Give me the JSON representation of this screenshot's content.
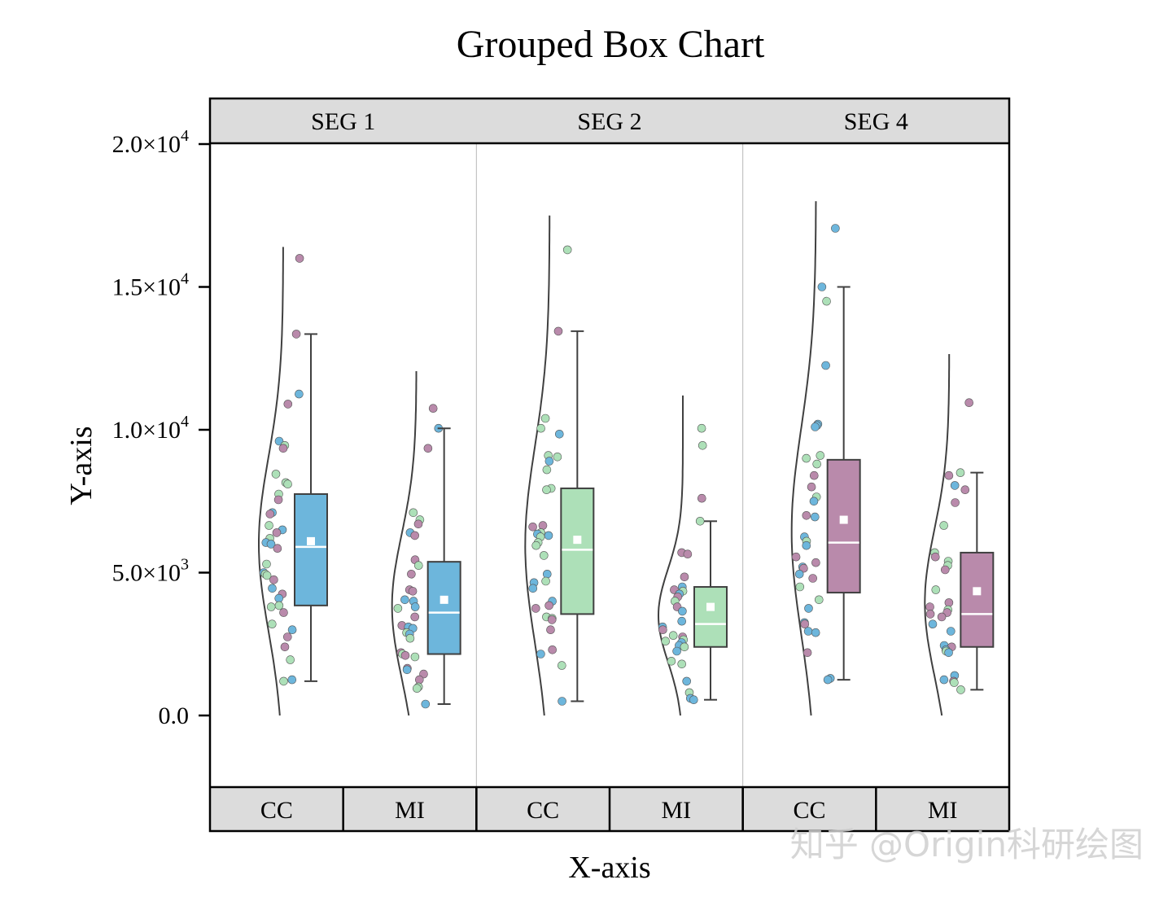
{
  "chart_data": {
    "type": "box",
    "title": "Grouped Box Chart",
    "xlabel": "X-axis",
    "ylabel": "Y-axis",
    "ylim": [
      -2500,
      21500
    ],
    "y_ticks": [
      0,
      5000,
      10000,
      15000,
      20000
    ],
    "y_tick_labels": [
      {
        "value": 0,
        "mantissa": "0.0",
        "exp": ""
      },
      {
        "value": 5000,
        "mantissa": "5.0×10",
        "exp": "3"
      },
      {
        "value": 10000,
        "mantissa": "1.0×10",
        "exp": "4"
      },
      {
        "value": 15000,
        "mantissa": "1.5×10",
        "exp": "4"
      },
      {
        "value": 20000,
        "mantissa": "2.0×10",
        "exp": "4"
      }
    ],
    "segments": [
      "SEG 1",
      "SEG 2",
      "SEG 4"
    ],
    "categories": [
      "CC",
      "MI"
    ],
    "colors": {
      "blue": "#6db6dc",
      "green": "#ade0b8",
      "purple": "#b98aab",
      "line": "#404040",
      "strip": "#dcdcdc"
    },
    "boxes": [
      {
        "segment": "SEG 1",
        "category": "CC",
        "color": "blue",
        "whisker_low": 1200,
        "q1": 3850,
        "median": 5900,
        "q3": 7750,
        "whisker_high": 13350,
        "mean": 6100
      },
      {
        "segment": "SEG 1",
        "category": "MI",
        "color": "blue",
        "whisker_low": 400,
        "q1": 2150,
        "median": 3600,
        "q3": 5380,
        "whisker_high": 10050,
        "mean": 4050
      },
      {
        "segment": "SEG 2",
        "category": "CC",
        "color": "green",
        "whisker_low": 500,
        "q1": 3550,
        "median": 5800,
        "q3": 7950,
        "whisker_high": 13450,
        "mean": 6150
      },
      {
        "segment": "SEG 2",
        "category": "MI",
        "color": "green",
        "whisker_low": 550,
        "q1": 2400,
        "median": 3200,
        "q3": 4500,
        "whisker_high": 6800,
        "mean": 3800
      },
      {
        "segment": "SEG 4",
        "category": "CC",
        "color": "purple",
        "whisker_low": 1250,
        "q1": 4300,
        "median": 6050,
        "q3": 8950,
        "whisker_high": 15000,
        "mean": 6850
      },
      {
        "segment": "SEG 4",
        "category": "MI",
        "color": "purple",
        "whisker_low": 900,
        "q1": 2400,
        "median": 3550,
        "q3": 5700,
        "whisker_high": 8500,
        "mean": 4350
      }
    ],
    "density_extent": [
      {
        "segment": "SEG 1",
        "category": "CC",
        "min": 0,
        "max": 16400
      },
      {
        "segment": "SEG 1",
        "category": "MI",
        "min": 0,
        "max": 12050
      },
      {
        "segment": "SEG 2",
        "category": "CC",
        "min": 0,
        "max": 17500
      },
      {
        "segment": "SEG 2",
        "category": "MI",
        "min": 0,
        "max": 11200
      },
      {
        "segment": "SEG 4",
        "category": "CC",
        "min": 0,
        "max": 18000
      },
      {
        "segment": "SEG 4",
        "category": "MI",
        "min": 0,
        "max": 12650
      }
    ],
    "points": [
      {
        "segment": "SEG 1",
        "category": "CC",
        "values": [
          16000,
          13350,
          11250,
          10900,
          9600,
          9450,
          9350,
          8450,
          8150,
          8100,
          7750,
          7550,
          7100,
          7050,
          6650,
          6500,
          6400,
          6200,
          6050,
          6000,
          5850,
          5300,
          5000,
          4950,
          4900,
          4750,
          4450,
          4250,
          4100,
          3850,
          3800,
          3600,
          3200,
          3000,
          2750,
          2400,
          1950,
          1250,
          1200
        ]
      },
      {
        "segment": "SEG 1",
        "category": "MI",
        "values": [
          10750,
          10050,
          9350,
          7100,
          6850,
          6700,
          6400,
          6300,
          5450,
          5250,
          4950,
          4400,
          4350,
          4050,
          4000,
          3800,
          3750,
          3450,
          3150,
          3100,
          3050,
          2900,
          2850,
          2700,
          2200,
          2150,
          2100,
          2050,
          1650,
          1600,
          1450,
          1250,
          1000,
          950,
          400
        ]
      },
      {
        "segment": "SEG 2",
        "category": "CC",
        "values": [
          16300,
          13450,
          10400,
          10050,
          9850,
          9100,
          9050,
          8900,
          8600,
          7950,
          7900,
          6650,
          6600,
          6400,
          6350,
          6300,
          6250,
          6050,
          5950,
          5600,
          4950,
          4700,
          4650,
          4450,
          4000,
          3850,
          3750,
          3450,
          3400,
          3350,
          3000,
          2300,
          2150,
          1750,
          500
        ]
      },
      {
        "segment": "SEG 2",
        "category": "MI",
        "values": [
          10050,
          9450,
          7600,
          6800,
          5700,
          5650,
          4850,
          4500,
          4400,
          4350,
          4250,
          4150,
          4000,
          3800,
          3650,
          3300,
          3100,
          3000,
          2800,
          2750,
          2650,
          2600,
          2550,
          2450,
          2400,
          2250,
          1900,
          1800,
          1200,
          800,
          600,
          550
        ]
      },
      {
        "segment": "SEG 4",
        "category": "CC",
        "values": [
          17050,
          15000,
          14500,
          12250,
          10200,
          10150,
          10100,
          9100,
          9000,
          8800,
          8400,
          8000,
          7650,
          7500,
          7000,
          6950,
          6250,
          6100,
          5950,
          5550,
          5350,
          5200,
          5150,
          4950,
          4800,
          4500,
          4050,
          3750,
          3250,
          3200,
          2950,
          2900,
          2200,
          1300,
          1250
        ]
      },
      {
        "segment": "SEG 4",
        "category": "MI",
        "values": [
          10950,
          8500,
          8400,
          8050,
          7900,
          7450,
          6650,
          5700,
          5550,
          5400,
          5250,
          5100,
          4400,
          3950,
          3800,
          3700,
          3600,
          3550,
          3450,
          3200,
          2950,
          2450,
          2400,
          2300,
          2250,
          2200,
          1400,
          1250,
          1200,
          1150,
          900
        ]
      }
    ]
  },
  "watermark": "知乎 @Origin科研绘图"
}
